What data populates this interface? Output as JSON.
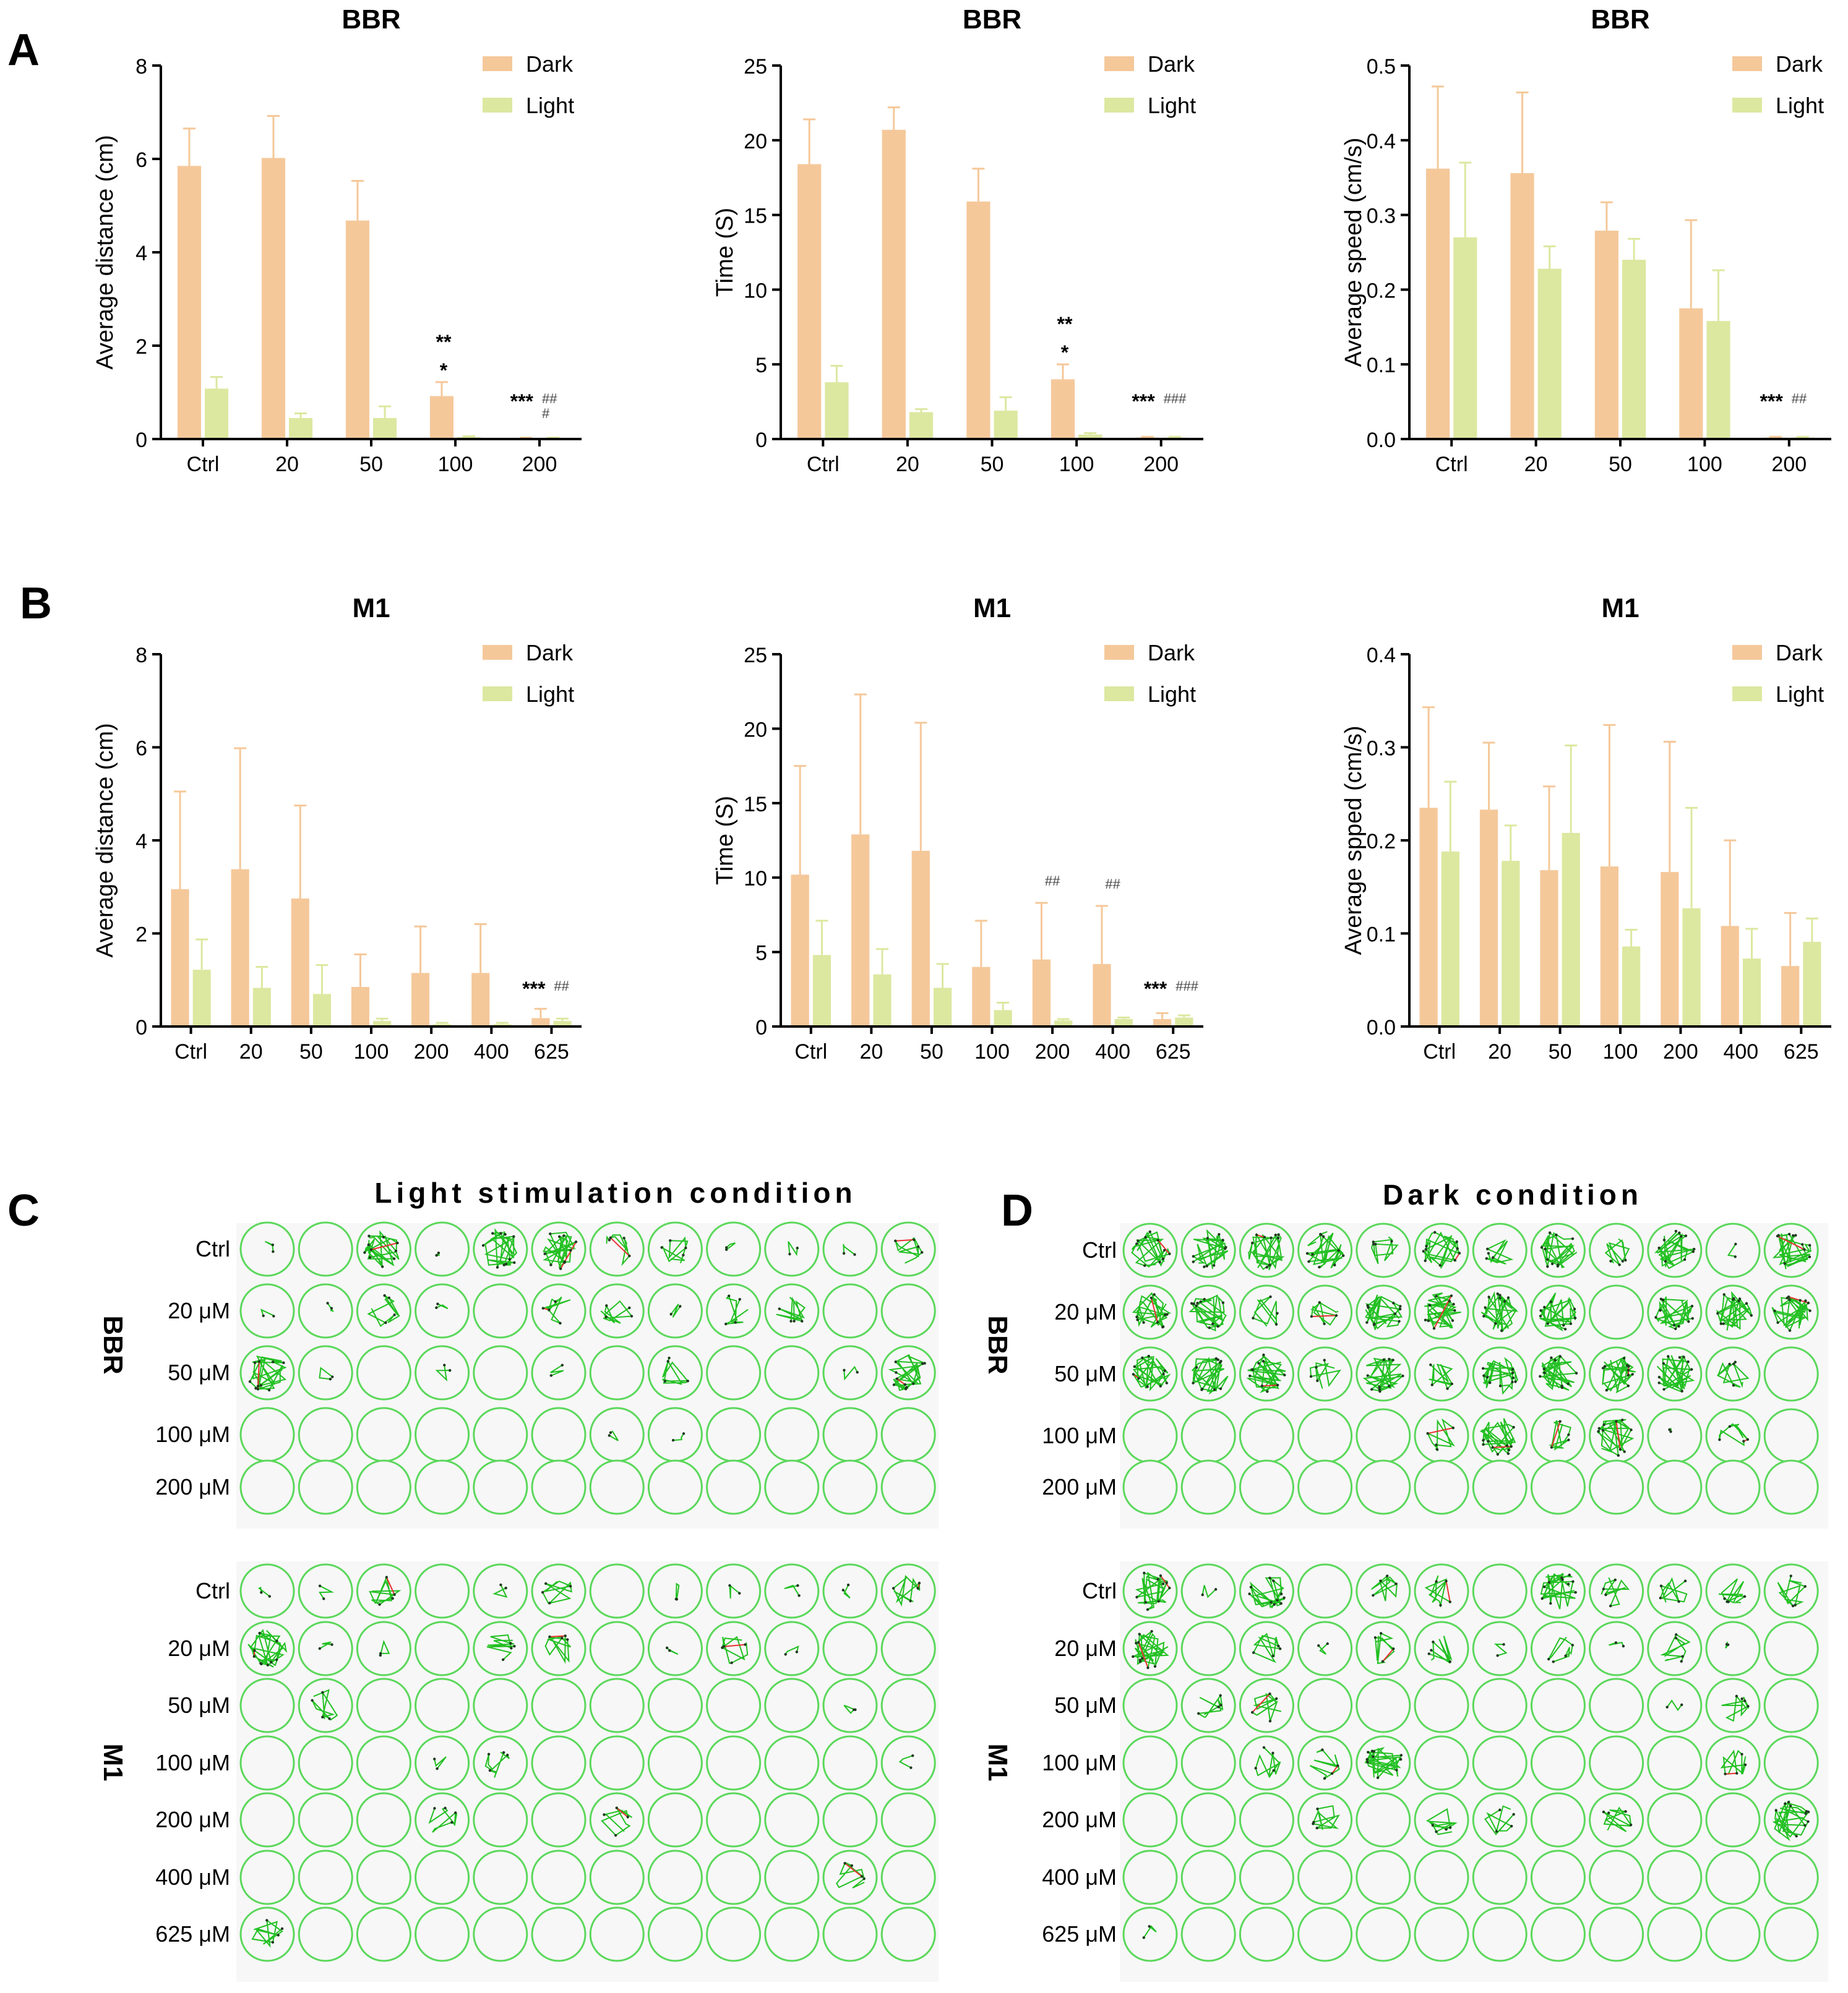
{
  "figure": {
    "panel_labels": {
      "A": "A",
      "B": "B",
      "C": "C",
      "D": "D"
    },
    "colors": {
      "dark": "#F5C89A",
      "light": "#DCE8A0",
      "err_dark": "#F5C89A",
      "err_light": "#DCE8A0",
      "axis": "#000000",
      "well": "#5BD85B",
      "track_green": "#22C022",
      "track_red": "#E83030",
      "track_dark": "#1F3A1F"
    }
  },
  "chart_data": [
    {
      "id": "A1",
      "type": "bar",
      "title": "BBR",
      "ylabel": "Average distance (cm)",
      "ylim": [
        0,
        8
      ],
      "yticks": [
        0,
        2,
        4,
        6,
        8
      ],
      "tick_decimals": 0,
      "categories": [
        "Ctrl",
        "20",
        "50",
        "100",
        "200"
      ],
      "series": [
        {
          "name": "Dark",
          "values": [
            5.85,
            6.02,
            4.68,
            0.92,
            0.02
          ],
          "errors": [
            0.8,
            0.9,
            0.85,
            0.3,
            0.01
          ]
        },
        {
          "name": "Light",
          "values": [
            1.08,
            0.45,
            0.45,
            0.04,
            0.02
          ],
          "errors": [
            0.25,
            0.1,
            0.25,
            0.02,
            0.01
          ]
        }
      ],
      "legend": [
        "Dark",
        "Light"
      ],
      "annotations": [
        {
          "category": "100",
          "text": "**"
        },
        {
          "category": "100",
          "text": "*"
        },
        {
          "category": "200",
          "text": "***"
        },
        {
          "category": "200",
          "text": "##"
        },
        {
          "category": "200",
          "text": "#"
        }
      ]
    },
    {
      "id": "A2",
      "type": "bar",
      "title": "BBR",
      "ylabel": "Time (S)",
      "ylim": [
        0,
        25
      ],
      "yticks": [
        0,
        5,
        10,
        15,
        20,
        25
      ],
      "tick_decimals": 0,
      "categories": [
        "Ctrl",
        "20",
        "50",
        "100",
        "200"
      ],
      "series": [
        {
          "name": "Dark",
          "values": [
            18.4,
            20.7,
            15.9,
            4.0,
            0.1
          ],
          "errors": [
            3.0,
            1.5,
            2.2,
            1.0,
            0.05
          ]
        },
        {
          "name": "Light",
          "values": [
            3.8,
            1.8,
            1.9,
            0.3,
            0.1
          ],
          "errors": [
            1.1,
            0.2,
            0.9,
            0.1,
            0.05
          ]
        }
      ],
      "legend": [
        "Dark",
        "Light"
      ],
      "annotations": [
        {
          "category": "100",
          "text": "**"
        },
        {
          "category": "100",
          "text": "*"
        },
        {
          "category": "200",
          "text": "***"
        },
        {
          "category": "200",
          "text": "###"
        }
      ]
    },
    {
      "id": "A3",
      "type": "bar",
      "title": "BBR",
      "ylabel": "Average speed (cm/s)",
      "ylim": [
        0,
        0.5
      ],
      "yticks": [
        0,
        0.1,
        0.2,
        0.3,
        0.4,
        0.5
      ],
      "tick_decimals": 1,
      "categories": [
        "Ctrl",
        "20",
        "50",
        "100",
        "200"
      ],
      "series": [
        {
          "name": "Dark",
          "values": [
            0.362,
            0.356,
            0.279,
            0.175,
            0.002
          ],
          "errors": [
            0.11,
            0.108,
            0.038,
            0.118,
            0.001
          ]
        },
        {
          "name": "Light",
          "values": [
            0.27,
            0.228,
            0.24,
            0.158,
            0.002
          ],
          "errors": [
            0.1,
            0.03,
            0.028,
            0.068,
            0.001
          ]
        }
      ],
      "legend": [
        "Dark",
        "Light"
      ],
      "annotations": [
        {
          "category": "200",
          "text": "***"
        },
        {
          "category": "200",
          "text": "##"
        }
      ]
    },
    {
      "id": "B1",
      "type": "bar",
      "title": "M1",
      "ylabel": "Average distance (cm)",
      "ylim": [
        0,
        8
      ],
      "yticks": [
        0,
        2,
        4,
        6,
        8
      ],
      "tick_decimals": 0,
      "categories": [
        "Ctrl",
        "20",
        "50",
        "100",
        "200",
        "400",
        "625"
      ],
      "series": [
        {
          "name": "Dark",
          "values": [
            2.95,
            3.38,
            2.75,
            0.85,
            1.15,
            1.15,
            0.18
          ],
          "errors": [
            2.1,
            2.6,
            2.0,
            0.7,
            1.0,
            1.05,
            0.2
          ]
        },
        {
          "name": "Light",
          "values": [
            1.22,
            0.83,
            0.7,
            0.12,
            0.05,
            0.05,
            0.12
          ],
          "errors": [
            0.65,
            0.45,
            0.62,
            0.05,
            0.03,
            0.03,
            0.05
          ]
        }
      ],
      "legend": [
        "Dark",
        "Light"
      ],
      "annotations": [
        {
          "category": "625",
          "text": "***"
        },
        {
          "category": "625",
          "text": "##"
        }
      ]
    },
    {
      "id": "B2",
      "type": "bar",
      "title": "M1",
      "ylabel": "Time (S)",
      "ylim": [
        0,
        25
      ],
      "yticks": [
        0,
        5,
        10,
        15,
        20,
        25
      ],
      "tick_decimals": 0,
      "categories": [
        "Ctrl",
        "20",
        "50",
        "100",
        "200",
        "400",
        "625"
      ],
      "series": [
        {
          "name": "Dark",
          "values": [
            10.2,
            12.9,
            11.8,
            4.0,
            4.5,
            4.2,
            0.5
          ],
          "errors": [
            7.3,
            9.4,
            8.6,
            3.1,
            3.8,
            3.9,
            0.4
          ]
        },
        {
          "name": "Light",
          "values": [
            4.8,
            3.5,
            2.6,
            1.1,
            0.4,
            0.5,
            0.6
          ],
          "errors": [
            2.3,
            1.7,
            1.6,
            0.5,
            0.1,
            0.1,
            0.15
          ]
        }
      ],
      "legend": [
        "Dark",
        "Light"
      ],
      "annotations": [
        {
          "category": "200",
          "text": "##"
        },
        {
          "category": "400",
          "text": "##"
        },
        {
          "category": "625",
          "text": "***"
        },
        {
          "category": "625",
          "text": "###"
        }
      ]
    },
    {
      "id": "B3",
      "type": "bar",
      "title": "M1",
      "ylabel": "Average spped (cm/s)",
      "ylim": [
        0,
        0.4
      ],
      "yticks": [
        0,
        0.1,
        0.2,
        0.3,
        0.4
      ],
      "tick_decimals": 1,
      "categories": [
        "Ctrl",
        "20",
        "50",
        "100",
        "200",
        "400",
        "625"
      ],
      "series": [
        {
          "name": "Dark",
          "values": [
            0.235,
            0.233,
            0.168,
            0.172,
            0.166,
            0.108,
            0.065
          ],
          "errors": [
            0.108,
            0.072,
            0.09,
            0.152,
            0.14,
            0.092,
            0.057
          ]
        },
        {
          "name": "Light",
          "values": [
            0.188,
            0.178,
            0.208,
            0.086,
            0.127,
            0.073,
            0.091
          ],
          "errors": [
            0.075,
            0.038,
            0.094,
            0.018,
            0.108,
            0.032,
            0.025
          ]
        }
      ],
      "legend": [
        "Dark",
        "Light"
      ],
      "annotations": []
    }
  ],
  "well_plates": {
    "C": {
      "title": "Light stimulation condition",
      "groups": [
        {
          "name": "BBR",
          "rows": [
            {
              "label": "Ctrl",
              "activity": [
                1,
                0,
                3,
                1,
                3,
                3,
                2,
                2,
                1,
                1,
                1,
                2
              ]
            },
            {
              "label": "20 μM",
              "activity": [
                1,
                1,
                2,
                1,
                0,
                2,
                2,
                1,
                2,
                2,
                0,
                0
              ]
            },
            {
              "label": "50 μM",
              "activity": [
                3,
                1,
                0,
                1,
                0,
                1,
                0,
                2,
                0,
                0,
                1,
                3
              ]
            },
            {
              "label": "100 μM",
              "activity": [
                0,
                0,
                0,
                0,
                0,
                0,
                1,
                1,
                0,
                0,
                0,
                0
              ]
            },
            {
              "label": "200 μM",
              "activity": [
                0,
                0,
                0,
                0,
                0,
                0,
                0,
                0,
                0,
                0,
                0,
                0
              ]
            }
          ]
        },
        {
          "name": "M1",
          "rows": [
            {
              "label": "Ctrl",
              "activity": [
                1,
                1,
                2,
                0,
                1,
                2,
                0,
                1,
                1,
                1,
                1,
                2
              ]
            },
            {
              "label": "20 μM",
              "activity": [
                3,
                1,
                1,
                0,
                2,
                2,
                0,
                1,
                2,
                1,
                0,
                0
              ]
            },
            {
              "label": "50 μM",
              "activity": [
                0,
                2,
                0,
                0,
                0,
                0,
                0,
                0,
                0,
                0,
                1,
                0
              ]
            },
            {
              "label": "100 μM",
              "activity": [
                0,
                0,
                0,
                1,
                2,
                0,
                0,
                0,
                0,
                0,
                0,
                1
              ]
            },
            {
              "label": "200 μM",
              "activity": [
                0,
                0,
                0,
                2,
                0,
                0,
                2,
                0,
                0,
                0,
                0,
                0
              ]
            },
            {
              "label": "400 μM",
              "activity": [
                0,
                0,
                0,
                0,
                0,
                0,
                0,
                0,
                0,
                0,
                2,
                0
              ]
            },
            {
              "label": "625 μM",
              "activity": [
                2,
                0,
                0,
                0,
                0,
                0,
                0,
                0,
                0,
                0,
                0,
                0
              ]
            }
          ]
        }
      ]
    },
    "D": {
      "title": "Dark condition",
      "groups": [
        {
          "name": "BBR",
          "rows": [
            {
              "label": "Ctrl",
              "activity": [
                3,
                3,
                3,
                3,
                2,
                3,
                2,
                3,
                2,
                3,
                1,
                3
              ]
            },
            {
              "label": "20 μM",
              "activity": [
                3,
                3,
                2,
                2,
                3,
                3,
                3,
                3,
                0,
                3,
                3,
                3
              ]
            },
            {
              "label": "50 μM",
              "activity": [
                3,
                3,
                3,
                2,
                3,
                2,
                3,
                3,
                3,
                3,
                2,
                0
              ]
            },
            {
              "label": "100 μM",
              "activity": [
                0,
                0,
                0,
                0,
                0,
                2,
                3,
                2,
                3,
                1,
                2,
                0
              ]
            },
            {
              "label": "200 μM",
              "activity": [
                0,
                0,
                0,
                0,
                0,
                0,
                0,
                0,
                0,
                0,
                0,
                0
              ]
            }
          ]
        },
        {
          "name": "M1",
          "rows": [
            {
              "label": "Ctrl",
              "activity": [
                3,
                1,
                3,
                0,
                2,
                2,
                0,
                3,
                2,
                2,
                2,
                2
              ]
            },
            {
              "label": "20 μM",
              "activity": [
                3,
                0,
                2,
                1,
                2,
                2,
                1,
                2,
                1,
                2,
                1,
                0
              ]
            },
            {
              "label": "50 μM",
              "activity": [
                0,
                2,
                2,
                0,
                0,
                0,
                0,
                0,
                0,
                1,
                2,
                0
              ]
            },
            {
              "label": "100 μM",
              "activity": [
                0,
                0,
                2,
                2,
                3,
                0,
                0,
                0,
                0,
                0,
                2,
                0
              ]
            },
            {
              "label": "200 μM",
              "activity": [
                0,
                0,
                0,
                2,
                0,
                2,
                2,
                0,
                2,
                0,
                0,
                3
              ]
            },
            {
              "label": "400 μM",
              "activity": [
                0,
                0,
                0,
                0,
                0,
                0,
                0,
                0,
                0,
                0,
                0,
                0
              ]
            },
            {
              "label": "625 μM",
              "activity": [
                1,
                0,
                0,
                0,
                0,
                0,
                0,
                0,
                0,
                0,
                0,
                0
              ]
            }
          ]
        }
      ]
    }
  }
}
